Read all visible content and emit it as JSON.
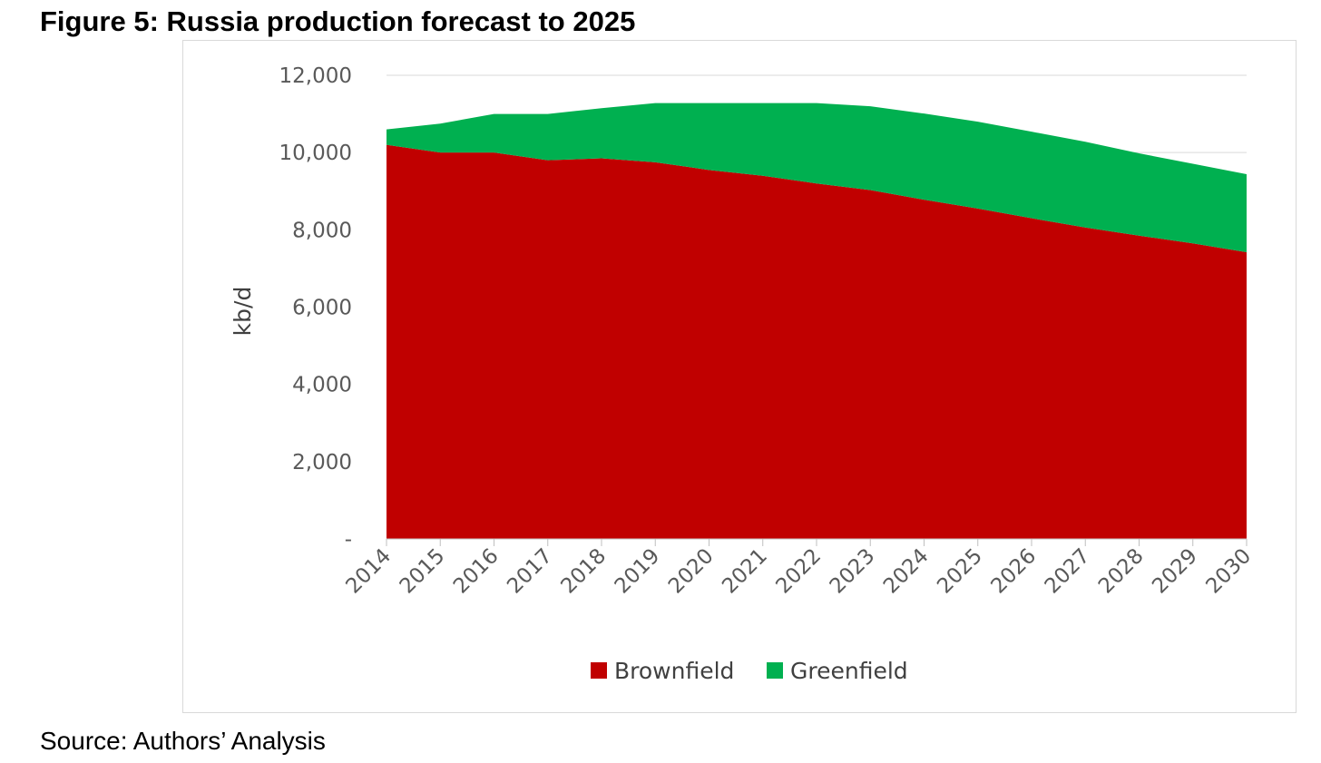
{
  "figure_title": "Figure 5: Russia production forecast to 2025",
  "source_note": "Source: Authors’ Analysis",
  "chart_data": {
    "type": "area",
    "stacked": true,
    "title": "",
    "xlabel": "",
    "ylabel": "kb/d",
    "ylim": [
      0,
      12000
    ],
    "yticks": [
      0,
      2000,
      4000,
      6000,
      8000,
      10000,
      12000
    ],
    "ytick_labels": [
      "-",
      "2,000",
      "4,000",
      "6,000",
      "8,000",
      "10,000",
      "12,000"
    ],
    "grid": true,
    "legend_position": "bottom",
    "x": [
      "2014",
      "2015",
      "2016",
      "2017",
      "2018",
      "2019",
      "2020",
      "2021",
      "2022",
      "2023",
      "2024",
      "2025",
      "2026",
      "2027",
      "2028",
      "2029",
      "2030"
    ],
    "series": [
      {
        "name": "Brownfield",
        "color": "#c00000",
        "values": [
          10200,
          10000,
          10000,
          9800,
          9850,
          9750,
          9550,
          9400,
          9200,
          9030,
          8780,
          8550,
          8300,
          8060,
          7850,
          7650,
          7420
        ]
      },
      {
        "name": "Greenfield",
        "color": "#00b050",
        "values": [
          400,
          750,
          1000,
          1200,
          1300,
          1530,
          1730,
          1880,
          2080,
          2170,
          2230,
          2250,
          2240,
          2220,
          2130,
          2060,
          2020
        ]
      }
    ]
  }
}
